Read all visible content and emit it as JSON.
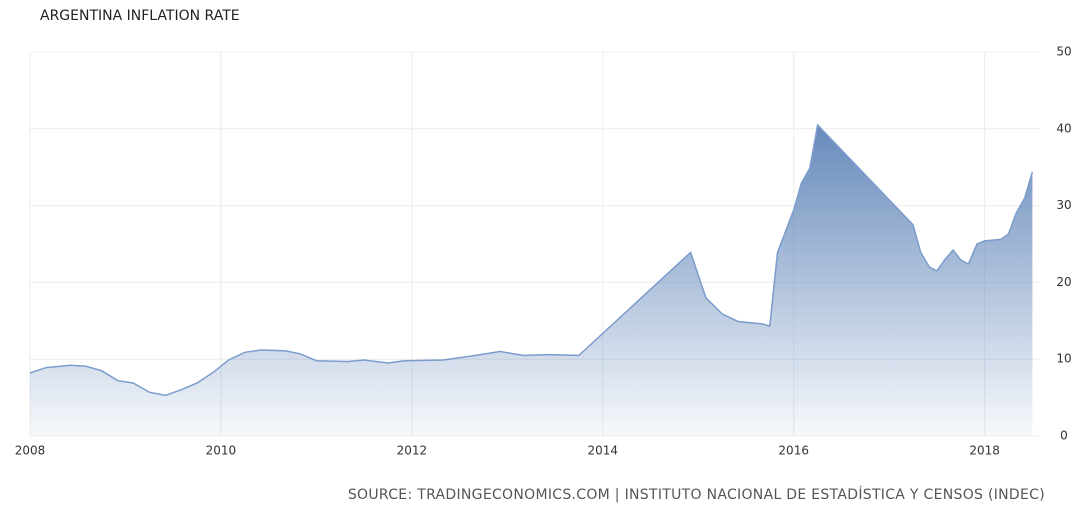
{
  "chart_data": {
    "type": "area",
    "title": "ARGENTINA INFLATION RATE",
    "source": "SOURCE: TRADINGECONOMICS.COM | INSTITUTO NACIONAL DE ESTADÍSTICA Y CENSOS (INDEC)",
    "x": [
      2008.0,
      2008.17,
      2008.42,
      2008.58,
      2008.75,
      2008.92,
      2009.08,
      2009.25,
      2009.42,
      2009.58,
      2009.75,
      2009.92,
      2010.08,
      2010.25,
      2010.42,
      2010.67,
      2010.83,
      2011.0,
      2011.33,
      2011.5,
      2011.75,
      2011.92,
      2012.33,
      2012.67,
      2012.92,
      2013.17,
      2013.42,
      2013.75,
      2014.92,
      2015.08,
      2015.25,
      2015.42,
      2015.67,
      2015.75,
      2015.83,
      2016.0,
      2016.08,
      2016.17,
      2016.25,
      2017.25,
      2017.33,
      2017.42,
      2017.5,
      2017.58,
      2017.67,
      2017.75,
      2017.83,
      2017.92,
      2018.0,
      2018.17,
      2018.25,
      2018.33,
      2018.42,
      2018.5
    ],
    "values": [
      8.2,
      8.9,
      9.2,
      9.1,
      8.5,
      7.2,
      6.9,
      5.7,
      5.3,
      6.0,
      6.9,
      8.3,
      9.9,
      10.9,
      11.2,
      11.1,
      10.7,
      9.8,
      9.7,
      9.9,
      9.5,
      9.8,
      9.9,
      10.5,
      11.0,
      10.5,
      10.6,
      10.5,
      23.9,
      18.0,
      15.9,
      14.9,
      14.6,
      14.3,
      23.9,
      29.4,
      32.9,
      34.9,
      40.5,
      27.5,
      23.9,
      22.0,
      21.5,
      22.9,
      24.2,
      22.9,
      22.4,
      25.0,
      25.4,
      25.6,
      26.3,
      29.0,
      31.0,
      34.4
    ],
    "color": "#7b9ccc",
    "xlim": [
      2008,
      2018.58
    ],
    "xticks": [
      2008,
      2010,
      2012,
      2014,
      2016,
      2018
    ],
    "ylim": [
      0,
      50
    ],
    "yticks": [
      0,
      10,
      20,
      30,
      40,
      50
    ],
    "grid": true
  }
}
